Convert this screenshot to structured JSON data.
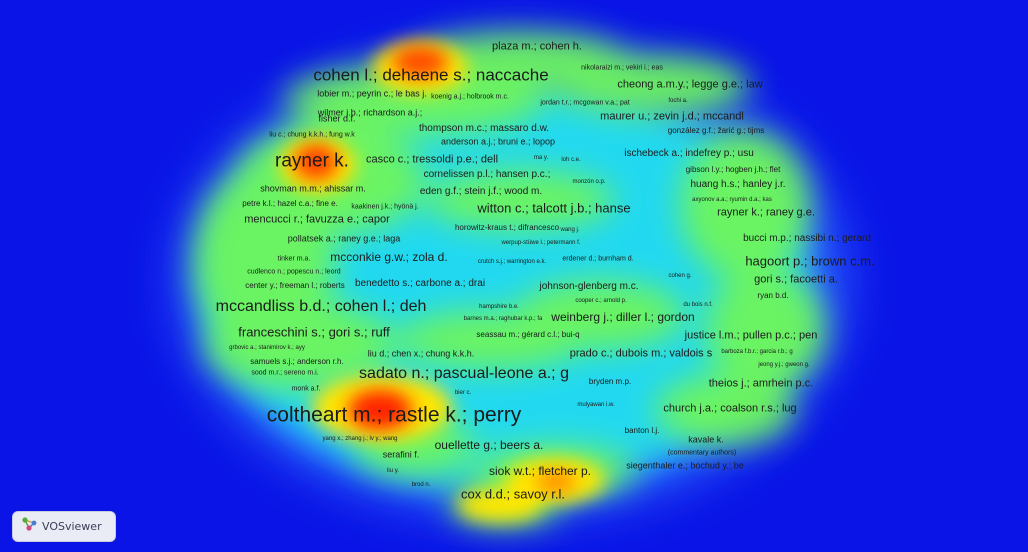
{
  "app": {
    "name": "VOSviewer"
  },
  "colors": {
    "background": "#0a14e6",
    "low": "#2d6cff",
    "mid": "#7cfc5a",
    "high": "#ffe600",
    "peak": "#ff2000"
  },
  "labels": [
    {
      "text": "plaza m.; cohen h.",
      "size": 11
    },
    {
      "text": "nikolaraizi m.; vekiri i.; eas",
      "size": 7
    },
    {
      "text": "cohen l.; dehaene s.; naccache",
      "size": 17
    },
    {
      "text": "cheong a.m.y.; legge g.e.; law",
      "size": 11
    },
    {
      "text": "lobier m.; peyrin c.; le bas j.",
      "size": 9
    },
    {
      "text": "koenig a.j.; holbrook m.c.",
      "size": 7
    },
    {
      "text": "jordan t.r.; mcgowan v.a.; pat",
      "size": 7
    },
    {
      "text": "fochi a.",
      "size": 6
    },
    {
      "text": "wilmer j.b.; richardson a.j.;",
      "size": 9
    },
    {
      "text": "maurer u.; zevin j.d.; mccandl",
      "size": 11
    },
    {
      "text": "fisher d.f.",
      "size": 9
    },
    {
      "text": "thompson m.c.; massaro d.w.",
      "size": 10
    },
    {
      "text": "gonzález g.f.; žarić g.; tijms",
      "size": 8
    },
    {
      "text": "liu c.; chung k.k.h.; fung w.k",
      "size": 7
    },
    {
      "text": "anderson a.j.; bruni e.; lopop",
      "size": 9
    },
    {
      "text": "ischebeck a.; indefrey p.; usu",
      "size": 10
    },
    {
      "text": "rayner k.",
      "size": 19
    },
    {
      "text": "casco c.; tressoldi p.e.; dell",
      "size": 11
    },
    {
      "text": "ma y.",
      "size": 6
    },
    {
      "text": "loh c.e.",
      "size": 6
    },
    {
      "text": "gibson l.y.; hogben j.h.; flet",
      "size": 8
    },
    {
      "text": "cornelissen p.l.; hansen p.c.;",
      "size": 10
    },
    {
      "text": "monzón o.p.",
      "size": 6
    },
    {
      "text": "huang h.s.; hanley j.r.",
      "size": 10
    },
    {
      "text": "shovman m.m.; ahissar m.",
      "size": 9
    },
    {
      "text": "eden g.f.; stein j.f.; wood m.",
      "size": 10
    },
    {
      "text": "axyonov a.a.; ryumin d.a.; kas",
      "size": 6
    },
    {
      "text": "petre k.l.; hazel c.a.; fine e.",
      "size": 8
    },
    {
      "text": "kaakinen j.k.; hyönä j.",
      "size": 7
    },
    {
      "text": "witton c.; talcott j.b.; hanse",
      "size": 13
    },
    {
      "text": "rayner k.; raney g.e.",
      "size": 11
    },
    {
      "text": "mencucci r.; favuzza e.; capor",
      "size": 11
    },
    {
      "text": "horowitz-kraus t.; difrancesco",
      "size": 8
    },
    {
      "text": "wang j.",
      "size": 6
    },
    {
      "text": "pollatsek a.; raney g.e.; laga",
      "size": 9
    },
    {
      "text": "werpup-stüwe l.; petermann f.",
      "size": 6
    },
    {
      "text": "bucci m.p.; nassibi n.; gerard",
      "size": 10
    },
    {
      "text": "tinker m.a.",
      "size": 7
    },
    {
      "text": "mcconkie g.w.; zola d.",
      "size": 12
    },
    {
      "text": "crutch s.j.; warrington e.k.",
      "size": 6
    },
    {
      "text": "erdener d.; burnham d.",
      "size": 7
    },
    {
      "text": "hagoort p.; brown c.m.",
      "size": 13
    },
    {
      "text": "cudlenco n.; popescu n.; leord",
      "size": 7
    },
    {
      "text": "cohen g.",
      "size": 6
    },
    {
      "text": "gori s.; facoetti a.",
      "size": 11
    },
    {
      "text": "center y.; freeman l.; roberts",
      "size": 8
    },
    {
      "text": "benedetto s.; carbone a.; drai",
      "size": 10
    },
    {
      "text": "johnson-glenberg m.c.",
      "size": 10
    },
    {
      "text": "ryan b.d.",
      "size": 8
    },
    {
      "text": "cooper c.; arnold p.",
      "size": 6
    },
    {
      "text": "mccandliss b.d.; cohen l.; deh",
      "size": 16
    },
    {
      "text": "hampshire b.e.",
      "size": 6
    },
    {
      "text": "du bois n.f.",
      "size": 6
    },
    {
      "text": "barnes m.a.; raghubar k.p.; fa",
      "size": 6
    },
    {
      "text": "weinberg j.; diller l.; gordon",
      "size": 12
    },
    {
      "text": "franceschini s.; gori s.; ruff",
      "size": 13
    },
    {
      "text": "justice l.m.; pullen p.c.; pen",
      "size": 11
    },
    {
      "text": "seassau m.; gérard c.l.; bui-q",
      "size": 8
    },
    {
      "text": "grbovic a.; stanimirov k.; ayy",
      "size": 6
    },
    {
      "text": "liu d.; chen x.; chung k.k.h.",
      "size": 9
    },
    {
      "text": "prado c.; dubois m.; valdois s",
      "size": 11
    },
    {
      "text": "barboza f.b.r.; garcia r.b.; g",
      "size": 6
    },
    {
      "text": "samuels s.j.; anderson r.h.",
      "size": 8
    },
    {
      "text": "jeong y.j.; gweon g.",
      "size": 6
    },
    {
      "text": "sood m.r.; sereno m.i.",
      "size": 7
    },
    {
      "text": "sadato n.; pascual-leone a.; g",
      "size": 16
    },
    {
      "text": "monk a.f.",
      "size": 7
    },
    {
      "text": "bryden m.p.",
      "size": 8
    },
    {
      "text": "theios j.; amrhein p.c.",
      "size": 11
    },
    {
      "text": "bier c.",
      "size": 6
    },
    {
      "text": "mulyawan i.w.",
      "size": 6
    },
    {
      "text": "church j.a.; coalson r.s.; lug",
      "size": 11
    },
    {
      "text": "coltheart m.; rastle k.; perry",
      "size": 21
    },
    {
      "text": "banton l.j.",
      "size": 8
    },
    {
      "text": "yang x.; zhang j.; lv y.; wang",
      "size": 6
    },
    {
      "text": "kavale k.",
      "size": 9
    },
    {
      "text": "ouellette g.; beers a.",
      "size": 12
    },
    {
      "text": "(commentary authors)",
      "size": 7
    },
    {
      "text": "serafini f.",
      "size": 9
    },
    {
      "text": "siegenthaler e.; bochud y.; be",
      "size": 9
    },
    {
      "text": "liu y.",
      "size": 6
    },
    {
      "text": "siok w.t.; fletcher p.",
      "size": 12
    },
    {
      "text": "brod n.",
      "size": 6
    },
    {
      "text": "cox d.d.; savoy r.l.",
      "size": 13
    }
  ]
}
